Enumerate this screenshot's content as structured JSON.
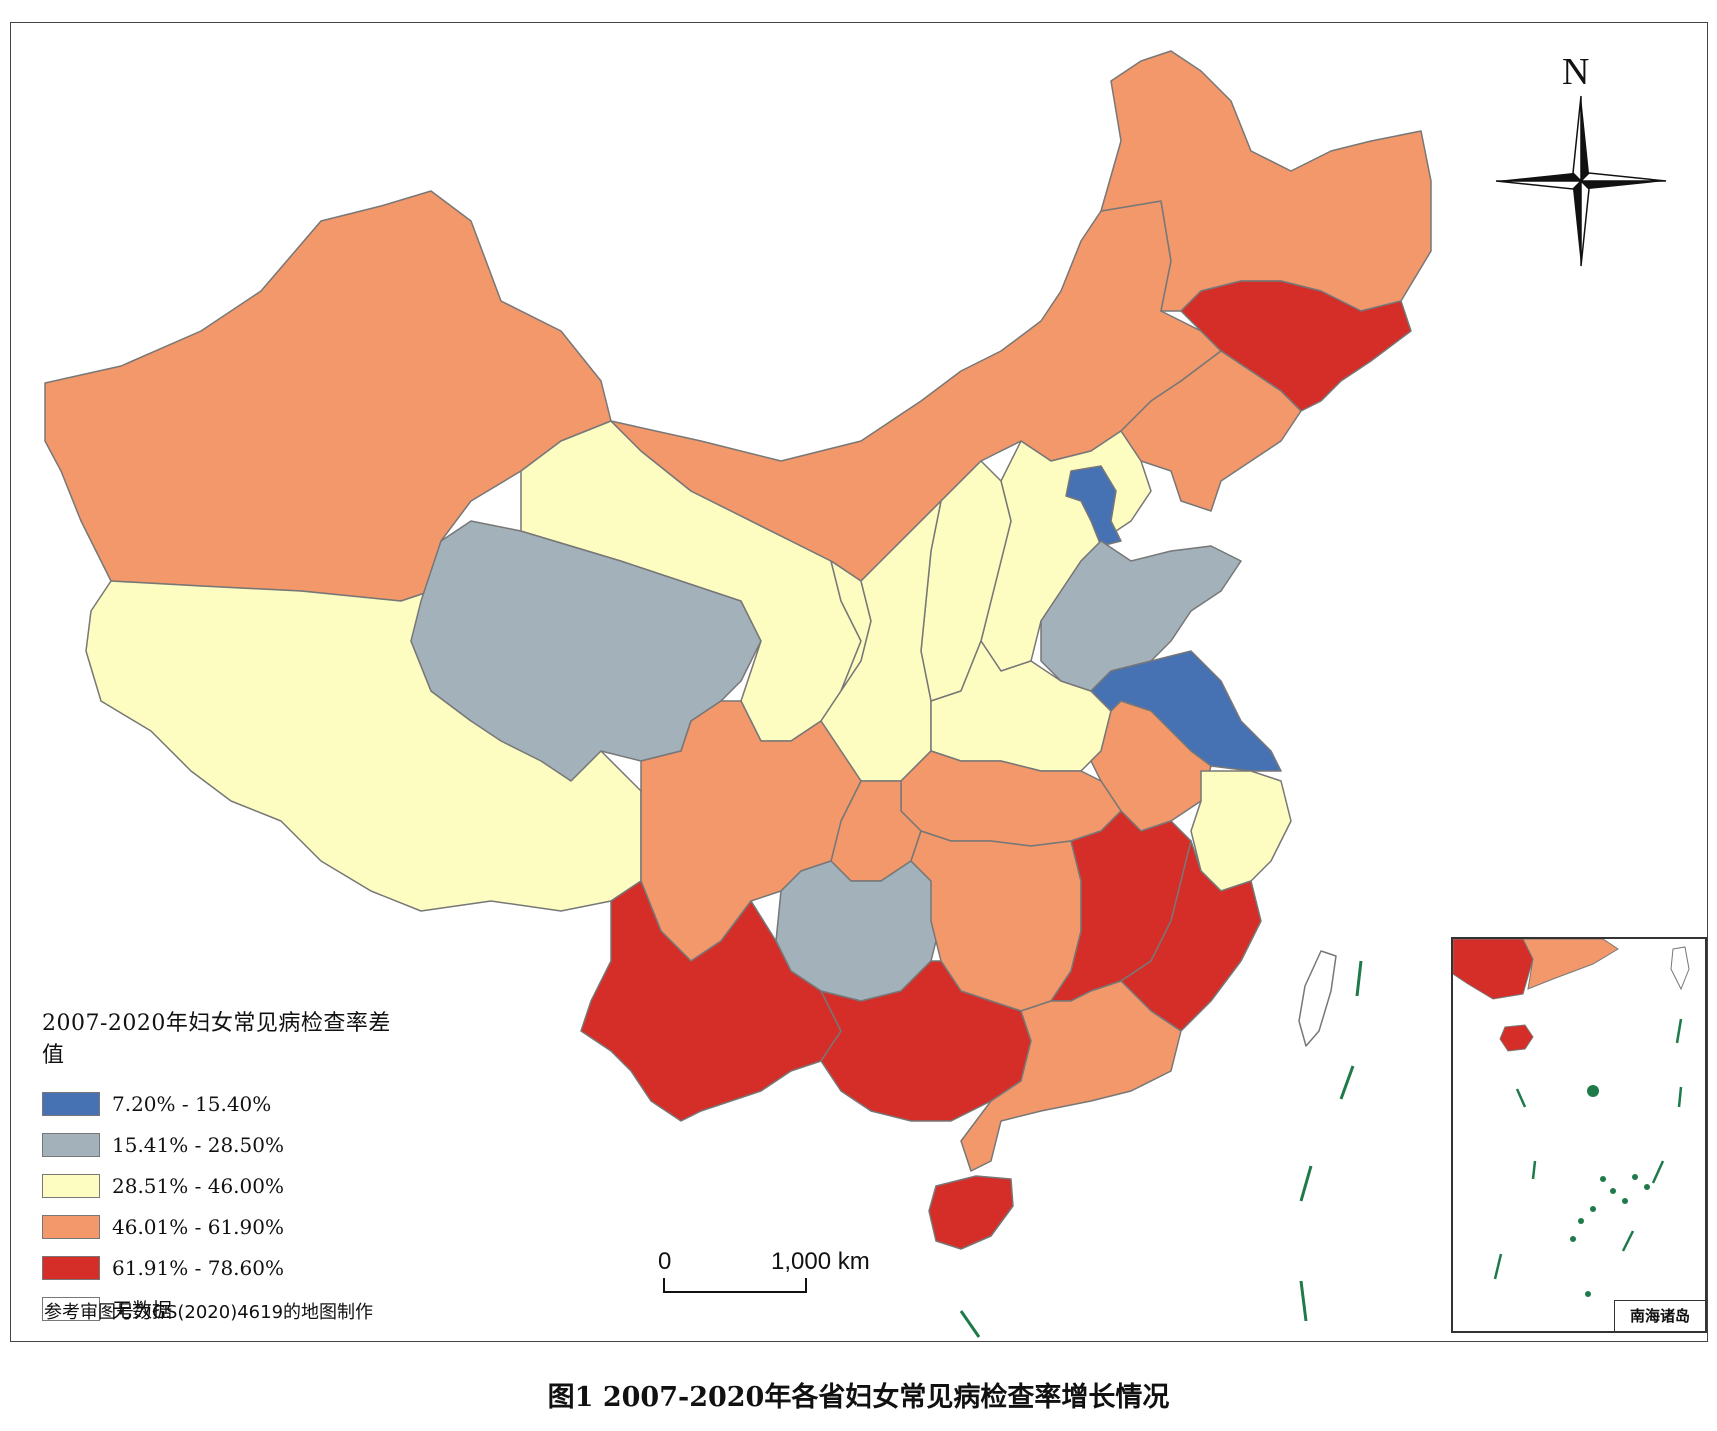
{
  "caption": "图1 2007-2020年各省妇女常见病检查率增长情况",
  "legend": {
    "title": "2007-2020年妇女常见病检查率差值",
    "classes": [
      {
        "label": "7.20% - 15.40%",
        "color": "#4672b4"
      },
      {
        "label": "15.41% - 28.50%",
        "color": "#a2b1ba"
      },
      {
        "label": "28.51% - 46.00%",
        "color": "#fdfdc2"
      },
      {
        "label": "46.01% - 61.90%",
        "color": "#f2986b"
      },
      {
        "label": "61.91% - 78.60%",
        "color": "#d52d28"
      },
      {
        "label": "无数据",
        "color": "#ffffff"
      }
    ]
  },
  "source_note": "参考审图号为GS(2020)4619的地图制作",
  "scale_bar": {
    "zero": "0",
    "right": "1,000 km"
  },
  "north_label": "N",
  "inset_label": "南海诸岛",
  "colors": {
    "class1": "#4672b4",
    "class2": "#a2b1ba",
    "class3": "#fdfdc2",
    "class4": "#f2986b",
    "class5": "#d52d28",
    "border": "#666666",
    "islands": "#1f7a4a"
  }
}
